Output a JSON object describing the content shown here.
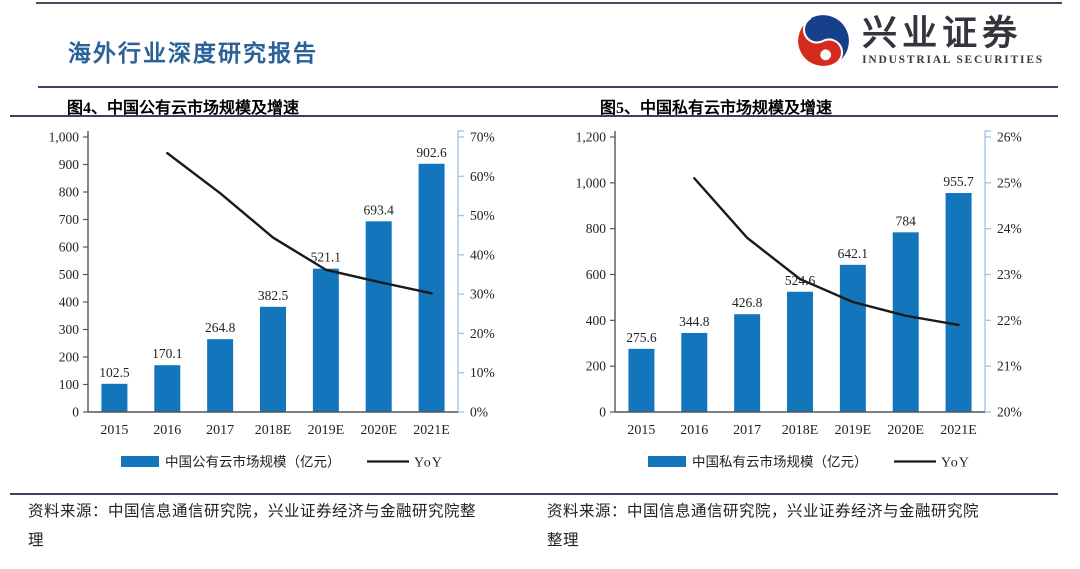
{
  "header": {
    "report_title": "海外行业深度研究报告",
    "logo_cn": "兴业证券",
    "logo_en": "INDUSTRIAL SECURITIES"
  },
  "colors": {
    "bar": "#1376bc",
    "line": "#1a1a1a",
    "axis": "#555555",
    "right_axis": "#9dc3e6",
    "title_blue": "#2a6197",
    "divider": "#3f3f63",
    "logo_red": "#d42b1e",
    "logo_blue": "#17408b"
  },
  "chart_data": [
    {
      "type": "bar+line",
      "title": "图4、中国公有云市场规模及增速",
      "categories": [
        "2015",
        "2016",
        "2017",
        "2018E",
        "2019E",
        "2020E",
        "2021E"
      ],
      "bars": {
        "name": "中国公有云市场规模（亿元）",
        "values": [
          102.5,
          170.1,
          264.8,
          382.5,
          521.1,
          693.4,
          902.6
        ],
        "labels": [
          "102.5",
          "170.1",
          "264.8",
          "382.5",
          "521.1",
          "693.4",
          "902.6"
        ]
      },
      "line": {
        "name": "YoY",
        "values": [
          null,
          65.9,
          55.7,
          44.4,
          36.2,
          33.1,
          30.2
        ]
      },
      "ylim": [
        0,
        1000
      ],
      "yticks": [
        "1,000",
        "900",
        "800",
        "700",
        "600",
        "500",
        "400",
        "300",
        "200",
        "100",
        "0"
      ],
      "y2lim": [
        0,
        70
      ],
      "y2ticks": [
        "70%",
        "60%",
        "50%",
        "40%",
        "30%",
        "20%",
        "10%",
        "0%"
      ],
      "xlabel": "",
      "ylabel": "",
      "grid": false,
      "legend_position": "bottom"
    },
    {
      "type": "bar+line",
      "title": "图5、中国私有云市场规模及增速",
      "categories": [
        "2015",
        "2016",
        "2017",
        "2018E",
        "2019E",
        "2020E",
        "2021E"
      ],
      "bars": {
        "name": "中国私有云市场规模（亿元）",
        "values": [
          275.6,
          344.8,
          426.8,
          524.6,
          642.1,
          784,
          955.7
        ],
        "labels": [
          "275.6",
          "344.8",
          "426.8",
          "524.6",
          "642.1",
          "784",
          "955.7"
        ]
      },
      "line": {
        "name": "YoY",
        "values": [
          null,
          25.1,
          23.8,
          22.9,
          22.4,
          22.1,
          21.9
        ]
      },
      "ylim": [
        0,
        1200
      ],
      "yticks": [
        "1,200",
        "1,000",
        "800",
        "600",
        "400",
        "200",
        "0"
      ],
      "y2lim": [
        20,
        26
      ],
      "y2ticks": [
        "26%",
        "25%",
        "24%",
        "23%",
        "22%",
        "21%",
        "20%"
      ],
      "xlabel": "",
      "ylabel": "",
      "grid": false,
      "legend_position": "bottom"
    }
  ],
  "footers": {
    "left": "资料来源：中国信息通信研究院，兴业证券经济与金融研究院整理",
    "right": "资料来源：中国信息通信研究院，兴业证券经济与金融研究院整理"
  }
}
